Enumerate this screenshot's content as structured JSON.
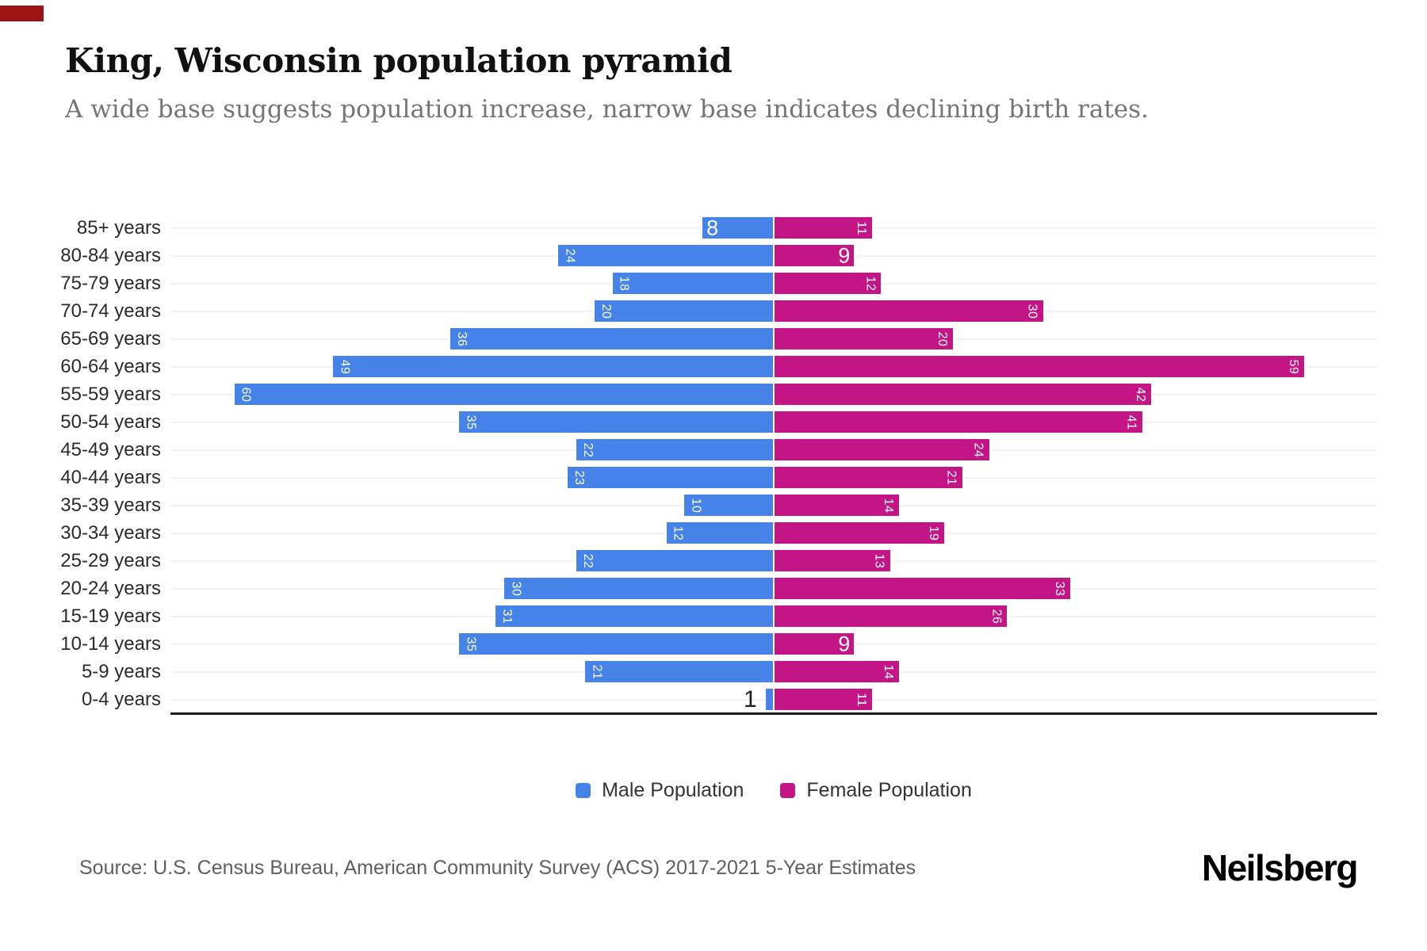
{
  "page": {
    "title": "King, Wisconsin population pyramid",
    "subtitle": "A wide base suggests population increase, narrow base indicates declining birth rates.",
    "source": "Source: U.S. Census Bureau, American Community Survey (ACS) 2017-2021 5-Year Estimates",
    "brand": "Neilsberg"
  },
  "legend": {
    "items": [
      {
        "label": "Male Population",
        "color": "#4583e8"
      },
      {
        "label": "Female Population",
        "color": "#c31585"
      }
    ],
    "position": "bottom-center"
  },
  "chart_data": {
    "type": "bar",
    "variant": "population-pyramid",
    "orientation": "horizontal",
    "title": "King, Wisconsin population pyramid",
    "categories": [
      "85+ years",
      "80-84 years",
      "75-79 years",
      "70-74 years",
      "65-69 years",
      "60-64 years",
      "55-59 years",
      "50-54 years",
      "45-49 years",
      "40-44 years",
      "35-39 years",
      "30-34 years",
      "25-29 years",
      "20-24 years",
      "15-19 years",
      "10-14 years",
      "5-9 years",
      "0-4 years"
    ],
    "series": [
      {
        "name": "Male Population",
        "side": "left",
        "color": "#4583e8",
        "values": [
          8,
          24,
          18,
          20,
          36,
          49,
          60,
          35,
          22,
          23,
          10,
          12,
          22,
          30,
          31,
          35,
          21,
          1
        ]
      },
      {
        "name": "Female Population",
        "side": "right",
        "color": "#c31585",
        "values": [
          11,
          9,
          12,
          30,
          20,
          59,
          42,
          41,
          24,
          21,
          14,
          19,
          13,
          33,
          26,
          9,
          14,
          11
        ]
      }
    ],
    "xlabel": "",
    "ylabel": "",
    "axis_max_per_side": 67,
    "grid": true,
    "data_labels": "inside-end"
  }
}
